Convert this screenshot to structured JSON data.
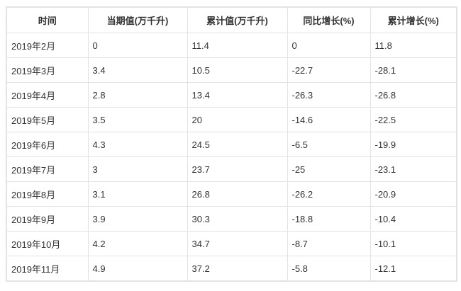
{
  "table": {
    "headers": [
      "时间",
      "当期值(万千升)",
      "累计值(万千升)",
      "同比增长(%)",
      "累计增长(%)"
    ],
    "rows": [
      [
        "2019年2月",
        "0",
        "11.4",
        "0",
        "11.8"
      ],
      [
        "2019年3月",
        "3.4",
        "10.5",
        "-22.7",
        "-28.1"
      ],
      [
        "2019年4月",
        "2.8",
        "13.4",
        "-26.3",
        "-26.8"
      ],
      [
        "2019年5月",
        "3.5",
        "20",
        "-14.6",
        "-22.5"
      ],
      [
        "2019年6月",
        "4.3",
        "24.5",
        "-6.5",
        "-19.9"
      ],
      [
        "2019年7月",
        "3",
        "23.7",
        "-25",
        "-23.1"
      ],
      [
        "2019年8月",
        "3.1",
        "26.8",
        "-26.2",
        "-20.9"
      ],
      [
        "2019年9月",
        "3.9",
        "30.3",
        "-18.8",
        "-10.4"
      ],
      [
        "2019年10月",
        "4.2",
        "34.7",
        "-8.7",
        "-10.1"
      ],
      [
        "2019年11月",
        "4.9",
        "37.2",
        "-5.8",
        "-12.1"
      ]
    ]
  }
}
